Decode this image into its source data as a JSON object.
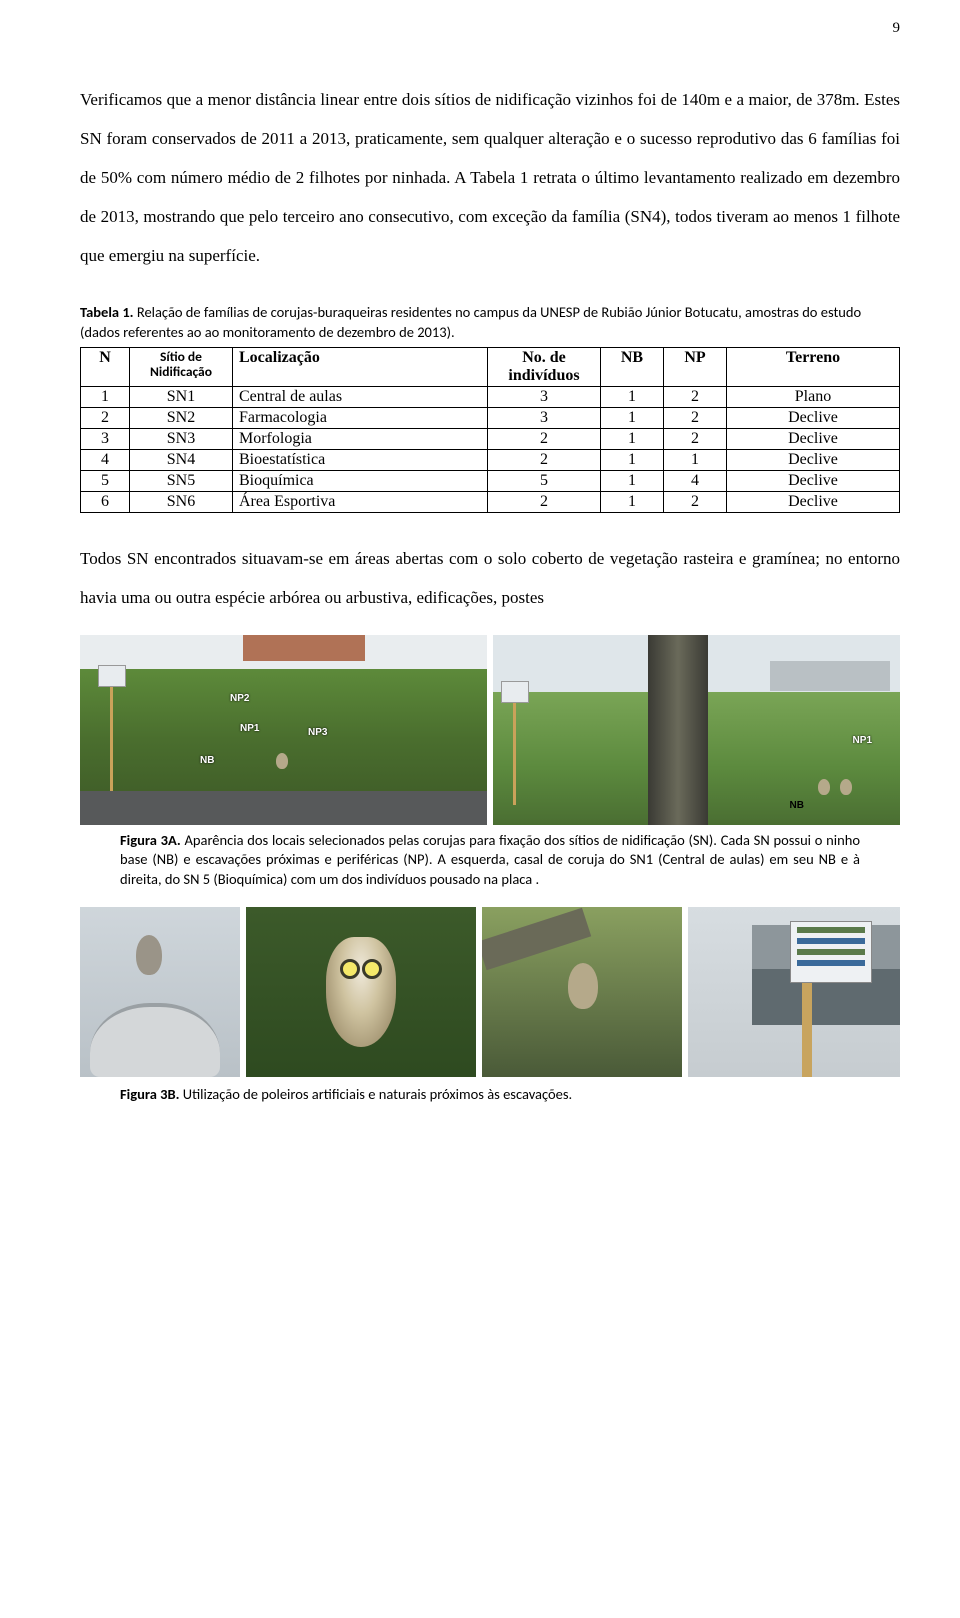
{
  "page_number": "9",
  "paragraph1": "Verificamos que a menor distância linear entre dois sítios de nidificação vizinhos foi de 140m e a maior, de 378m.  Estes SN foram conservados de 2011 a 2013, praticamente, sem qualquer alteração e o sucesso reprodutivo das 6 famílias foi de 50% com número médio de 2 filhotes por ninhada. A Tabela 1 retrata o último levantamento realizado em dezembro de 2013, mostrando que pelo terceiro ano consecutivo, com exceção da família (SN4), todos tiveram ao menos 1 filhote que emergiu na superfície.",
  "table1": {
    "caption_bold": "Tabela 1.",
    "caption_rest": " Relação de famílias de corujas-buraqueiras residentes no campus da UNESP de Rubião Júnior Botucatu, amostras do estudo (dados referentes ao ao monitoramento de dezembro de 2013).",
    "columns": {
      "n": "N",
      "sitio": "Sítio de Nidificação",
      "local": "Localização",
      "num": "No. de indivíduos",
      "nb": "NB",
      "np": "NP",
      "terreno": "Terreno"
    },
    "rows": [
      {
        "n": "1",
        "sitio": "SN1",
        "local": "Central de aulas",
        "num": "3",
        "nb": "1",
        "np": "2",
        "terreno": "Plano"
      },
      {
        "n": "2",
        "sitio": "SN2",
        "local": "Farmacologia",
        "num": "3",
        "nb": "1",
        "np": "2",
        "terreno": "Declive"
      },
      {
        "n": "3",
        "sitio": "SN3",
        "local": "Morfologia",
        "num": "2",
        "nb": "1",
        "np": "2",
        "terreno": "Declive"
      },
      {
        "n": "4",
        "sitio": "SN4",
        "local": "Bioestatística",
        "num": "2",
        "nb": "1",
        "np": "1",
        "terreno": "Declive"
      },
      {
        "n": "5",
        "sitio": "SN5",
        "local": "Bioquímica",
        "num": "5",
        "nb": "1",
        "np": "4",
        "terreno": "Declive"
      },
      {
        "n": "6",
        "sitio": "SN6",
        "local": "Área Esportiva",
        "num": "2",
        "nb": "1",
        "np": "2",
        "terreno": "Declive"
      }
    ]
  },
  "paragraph2": "Todos SN encontrados situavam-se em áreas abertas com o solo coberto de vegetação rasteira e gramínea; no entorno havia uma ou outra espécie arbórea ou arbustiva, edificações, postes",
  "fig3a": {
    "labels": {
      "np1": "NP1",
      "np2": "NP2",
      "np3": "NP3",
      "nb": "NB"
    },
    "caption_bold": "Figura 3A.",
    "caption_rest": " Aparência dos locais selecionados pelas corujas para fixação dos sítios de nidificação (SN).  Cada SN possui o ninho base (NB) e escavações próximas e periféricas (NP).  A esquerda, casal de coruja do SN1 (Central de aulas) em seu NB e à direita, do SN 5 (Bioquímica) com um dos indivíduos pousado na placa ."
  },
  "fig3b": {
    "caption_bold": "Figura 3B.",
    "caption_rest": " Utilização de poleiros artificiais e naturais próximos às escavações."
  },
  "colors": {
    "text": "#000000",
    "background": "#ffffff",
    "border": "#000000",
    "grass": "#5c8a3e",
    "sky": "#dfe6ea",
    "wood": "#c8a45e"
  }
}
